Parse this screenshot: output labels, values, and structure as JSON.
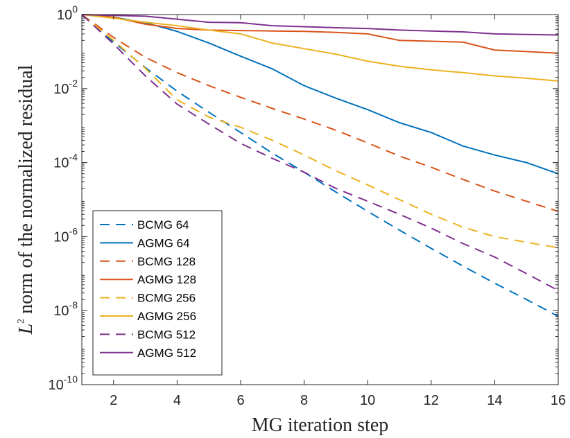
{
  "chart_data": {
    "type": "line",
    "title": "",
    "xlabel": "MG iteration step",
    "ylabel_prefix": "L",
    "ylabel_sup": "2",
    "ylabel_rest": " norm of the normalized residual",
    "xlim": [
      1,
      16
    ],
    "ylim": [
      1e-10,
      1
    ],
    "yscale": "log",
    "grid": false,
    "legend_position": "bottom-left",
    "x_ticks": [
      "2",
      "4",
      "6",
      "8",
      "10",
      "12",
      "14",
      "16"
    ],
    "y_ticks": [
      {
        "base": "10",
        "exp": "-10"
      },
      {
        "base": "10",
        "exp": "-8"
      },
      {
        "base": "10",
        "exp": "-6"
      },
      {
        "base": "10",
        "exp": "-4"
      },
      {
        "base": "10",
        "exp": "-2"
      },
      {
        "base": "10",
        "exp": "0"
      }
    ],
    "x": [
      1,
      2,
      3,
      4,
      5,
      6,
      7,
      8,
      9,
      10,
      11,
      12,
      13,
      14,
      15,
      16
    ],
    "series": [
      {
        "name": "BCMG 64",
        "color": "#0072BD",
        "dash": true,
        "values": [
          1,
          0.18,
          0.037,
          0.0085,
          0.0023,
          0.00065,
          0.00018,
          5.5e-05,
          1.6e-05,
          4.8e-06,
          1.5e-06,
          4.8e-07,
          1.6e-07,
          5.5e-08,
          2e-08,
          7e-09
        ]
      },
      {
        "name": "AGMG 64",
        "color": "#0072BD",
        "dash": false,
        "values": [
          1,
          0.85,
          0.6,
          0.35,
          0.17,
          0.075,
          0.034,
          0.012,
          0.0055,
          0.0027,
          0.0012,
          0.00065,
          0.00028,
          0.00016,
          0.0001,
          5e-05
        ]
      },
      {
        "name": "BCMG 128",
        "color": "#D95319",
        "dash": true,
        "values": [
          1,
          0.24,
          0.07,
          0.027,
          0.012,
          0.0058,
          0.0029,
          0.0015,
          0.00075,
          0.00034,
          0.00015,
          7.5e-05,
          3.5e-05,
          1.7e-05,
          9e-06,
          4.8e-06
        ]
      },
      {
        "name": "AGMG 128",
        "color": "#D95319",
        "dash": false,
        "values": [
          1,
          0.85,
          0.55,
          0.42,
          0.38,
          0.37,
          0.36,
          0.35,
          0.33,
          0.3,
          0.2,
          0.19,
          0.18,
          0.11,
          0.1,
          0.09
        ]
      },
      {
        "name": "BCMG 256",
        "color": "#EDB120",
        "dash": true,
        "values": [
          1,
          0.2,
          0.035,
          0.005,
          0.0017,
          0.0009,
          0.0004,
          0.00016,
          6e-05,
          2.5e-05,
          1e-05,
          4e-06,
          1.8e-06,
          1e-06,
          7e-07,
          5e-07
        ]
      },
      {
        "name": "AGMG 256",
        "color": "#EDB120",
        "dash": false,
        "values": [
          1,
          0.8,
          0.62,
          0.5,
          0.38,
          0.3,
          0.17,
          0.12,
          0.085,
          0.055,
          0.04,
          0.032,
          0.027,
          0.022,
          0.019,
          0.016
        ]
      },
      {
        "name": "BCMG 512",
        "color": "#7E2F8E",
        "dash": true,
        "values": [
          1,
          0.16,
          0.022,
          0.0038,
          0.0011,
          0.00033,
          0.00013,
          5.5e-05,
          2e-05,
          9e-06,
          4e-06,
          1.7e-06,
          6.5e-07,
          2.8e-07,
          1e-07,
          3.5e-08
        ]
      },
      {
        "name": "AGMG 512",
        "color": "#7E2F8E",
        "dash": false,
        "values": [
          1,
          0.95,
          0.9,
          0.75,
          0.62,
          0.6,
          0.5,
          0.47,
          0.44,
          0.42,
          0.38,
          0.36,
          0.34,
          0.3,
          0.29,
          0.28
        ]
      }
    ]
  }
}
